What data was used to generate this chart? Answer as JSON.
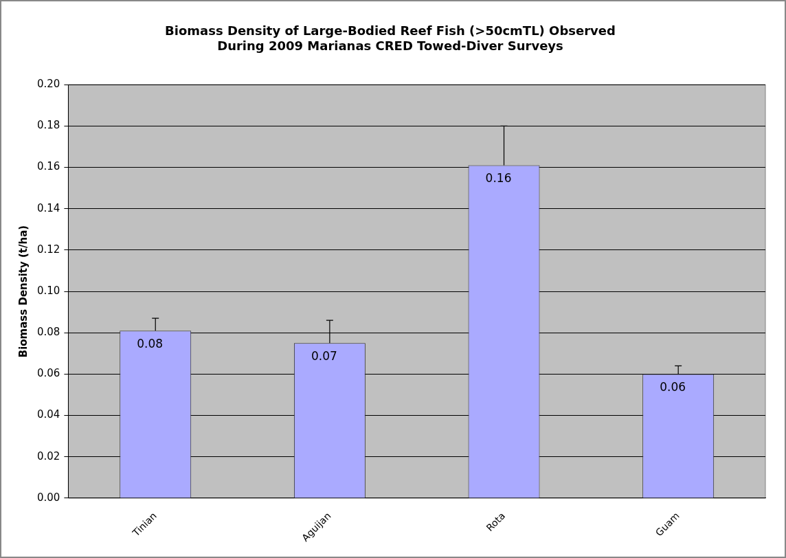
{
  "chart_data": {
    "type": "bar",
    "title": "Biomass Density of Large-Bodied Reef Fish (>50cmTL) Observed\nDuring 2009 Marianas CRED Towed-Diver Surveys",
    "ylabel": "Biomass Density (t/ha)",
    "categories": [
      "Tinian",
      "Aguijan",
      "Rota",
      "Guam"
    ],
    "values": [
      0.081,
      0.075,
      0.161,
      0.06
    ],
    "value_labels": [
      "0.08",
      "0.07",
      "0.16",
      "0.06"
    ],
    "errors": [
      [
        0.081,
        0.087
      ],
      [
        0.075,
        0.086
      ],
      [
        0.161,
        0.18
      ],
      [
        0.06,
        0.064
      ]
    ],
    "color": "#aaaaff",
    "ylim": [
      0,
      0.2
    ],
    "yticks": [
      {
        "value": 0,
        "label": "0.00"
      },
      {
        "value": 0.02,
        "label": "0.02"
      },
      {
        "value": 0.04,
        "label": "0.04"
      },
      {
        "value": 0.06,
        "label": "0.06"
      },
      {
        "value": 0.08,
        "label": "0.08"
      },
      {
        "value": 0.1,
        "label": "0.10"
      },
      {
        "value": 0.12,
        "label": "0.12"
      },
      {
        "value": 0.14,
        "label": "0.14"
      },
      {
        "value": 0.16,
        "label": "0.16"
      },
      {
        "value": 0.18,
        "label": "0.18"
      },
      {
        "value": 0.2,
        "label": "0.20"
      }
    ],
    "grid": "y",
    "legend": false
  }
}
